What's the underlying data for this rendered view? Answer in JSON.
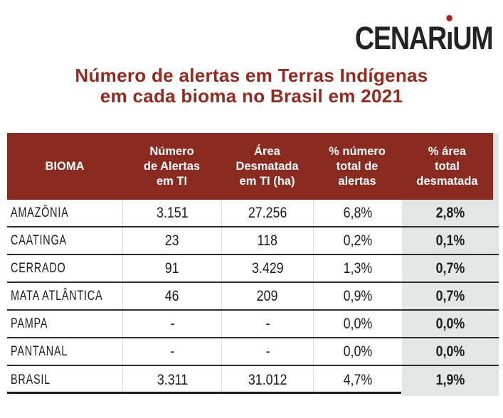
{
  "logo": {
    "text_left": "CENAR",
    "i_char": "ı",
    "text_right": "UM"
  },
  "title": {
    "line1": "Número de alertas em Terras Indígenas",
    "line2": "em cada bioma no Brasil em 2021"
  },
  "chart_data": {
    "type": "table",
    "title": "Número de alertas em Terras Indígenas em cada bioma no Brasil em 2021",
    "header": [
      [
        "BIOMA"
      ],
      [
        "Número",
        "de Alertas",
        "em TI"
      ],
      [
        "Área",
        "Desmatada",
        "em TI (ha)"
      ],
      [
        "% número",
        "total de",
        "alertas"
      ],
      [
        "% área",
        "total",
        "desmatada"
      ]
    ],
    "rows": [
      [
        "AMAZÔNIA",
        "3.151",
        "27.256",
        "6,8%",
        "2,8%"
      ],
      [
        "CAATINGA",
        "23",
        "118",
        "0,2%",
        "0,1%"
      ],
      [
        "CERRADO",
        "91",
        "3.429",
        "1,3%",
        "0,7%"
      ],
      [
        "MATA ATLÂNTICA",
        "46",
        "209",
        "0,9%",
        "0,7%"
      ],
      [
        "PAMPA",
        "-",
        "-",
        "0,0%",
        "0,0%"
      ],
      [
        "PANTANAL",
        "-",
        "-",
        "0,0%",
        "0,0%"
      ],
      [
        "BRASIL",
        "3.311",
        "31.012",
        "4,7%",
        "1,9%"
      ]
    ],
    "highlighted_column": "% área total desmatada",
    "layout_hints": {
      "grid": "horizontal row separators",
      "last_column_shaded": true
    }
  },
  "colors": {
    "maroon_header": "#8a2b21",
    "title_text": "#942a1e",
    "highlight_gray": "#e4e5e5",
    "row_text": "#1d1d1d",
    "logo_black": "#232323",
    "logo_dot_red": "#a6201e"
  }
}
